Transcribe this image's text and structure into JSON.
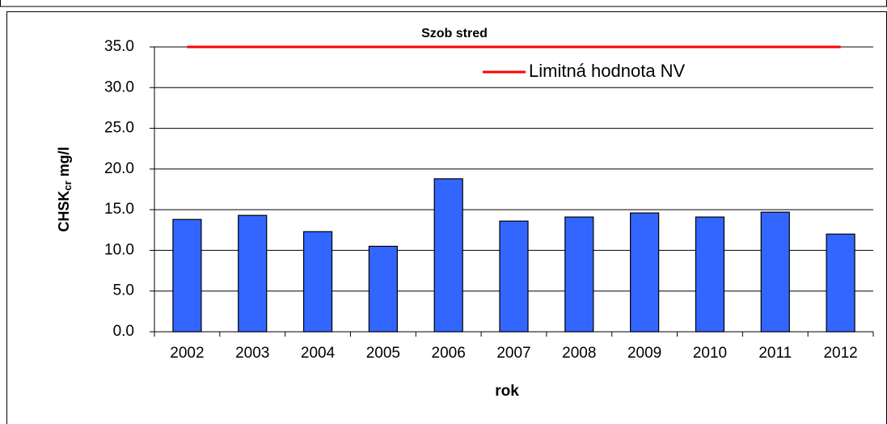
{
  "chart_data": {
    "type": "bar",
    "title": "Szob stred",
    "categories": [
      "2002",
      "2003",
      "2004",
      "2005",
      "2006",
      "2007",
      "2008",
      "2009",
      "2010",
      "2011",
      "2012"
    ],
    "values": [
      13.8,
      14.3,
      12.3,
      10.5,
      18.8,
      13.6,
      14.1,
      14.6,
      14.1,
      14.7,
      12.0
    ],
    "color": "#3366ff",
    "ylabel": {
      "main": "CHSK",
      "sub": "cr",
      "unit": "mg/l"
    },
    "xlabel": "rok",
    "ylim": [
      0,
      35
    ],
    "yticks": [
      {
        "value": 0,
        "label": "0.0"
      },
      {
        "value": 5,
        "label": "5.0"
      },
      {
        "value": 10,
        "label": "10.0"
      },
      {
        "value": 15,
        "label": "15.0"
      },
      {
        "value": 20,
        "label": "20.0"
      },
      {
        "value": 25,
        "label": "25.0"
      },
      {
        "value": 30,
        "label": "30.0"
      },
      {
        "value": 35,
        "label": "35.0"
      }
    ],
    "grid": true,
    "limit": {
      "name": "Limitná hodnota NV",
      "color": "#ff0000",
      "value": 35
    }
  }
}
